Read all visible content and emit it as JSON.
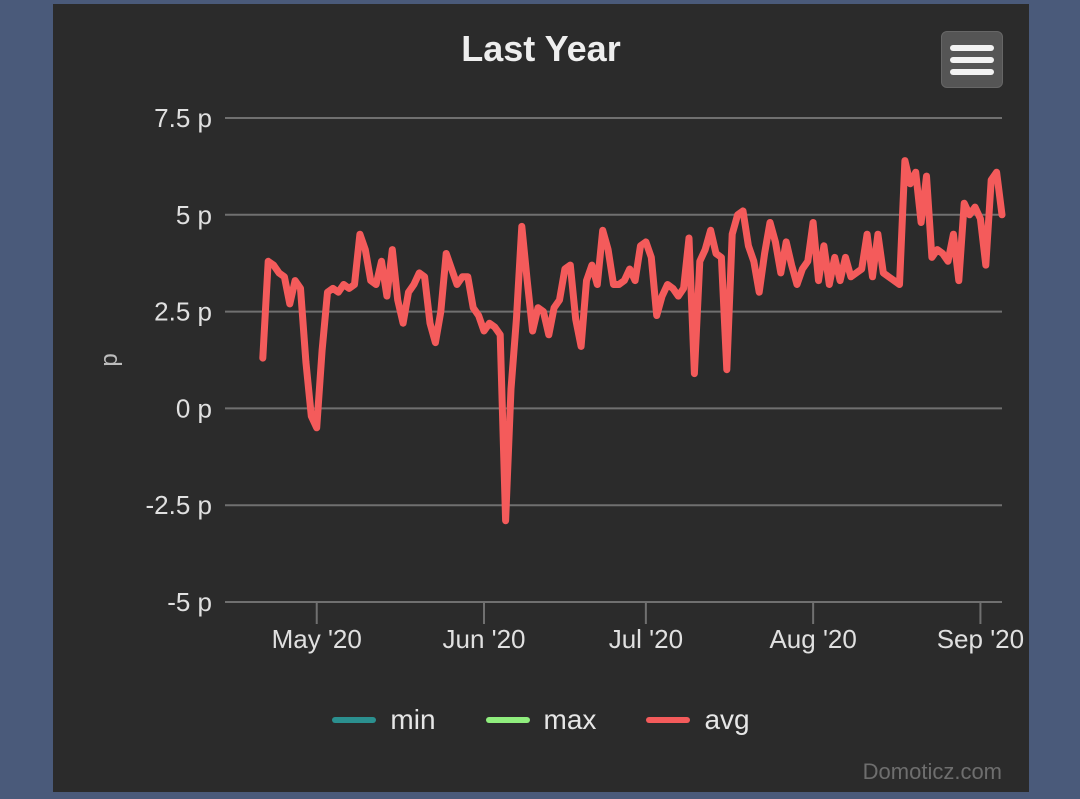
{
  "chart_data": {
    "type": "line",
    "title": "Last Year",
    "ylabel": "p",
    "ylim": [
      -5,
      7.5
    ],
    "y_ticks": [
      {
        "value": 7.5,
        "label": "7.5 p"
      },
      {
        "value": 5,
        "label": "5 p"
      },
      {
        "value": 2.5,
        "label": "2.5 p"
      },
      {
        "value": 0,
        "label": "0 p"
      },
      {
        "value": -2.5,
        "label": "-2.5 p"
      },
      {
        "value": -5,
        "label": "-5 p"
      }
    ],
    "xlim": [
      "2020-04-14",
      "2020-09-05"
    ],
    "x_ticks": [
      {
        "date": "2020-05-01",
        "label": "May '20"
      },
      {
        "date": "2020-06-01",
        "label": "Jun '20"
      },
      {
        "date": "2020-07-01",
        "label": "Jul '20"
      },
      {
        "date": "2020-08-01",
        "label": "Aug '20"
      },
      {
        "date": "2020-09-01",
        "label": "Sep '20"
      }
    ],
    "grid": true,
    "legend_position": "bottom",
    "series": [
      {
        "name": "min",
        "color": "#2b908f",
        "points": []
      },
      {
        "name": "max",
        "color": "#90ee7e",
        "points": []
      },
      {
        "name": "avg",
        "color": "#f45b5b",
        "points": [
          [
            "2020-04-21",
            1.3
          ],
          [
            "2020-04-22",
            3.8
          ],
          [
            "2020-04-23",
            3.7
          ],
          [
            "2020-04-24",
            3.5
          ],
          [
            "2020-04-25",
            3.4
          ],
          [
            "2020-04-26",
            2.7
          ],
          [
            "2020-04-27",
            3.3
          ],
          [
            "2020-04-28",
            3.1
          ],
          [
            "2020-04-29",
            1.2
          ],
          [
            "2020-04-30",
            -0.2
          ],
          [
            "2020-05-01",
            -0.5
          ],
          [
            "2020-05-02",
            1.5
          ],
          [
            "2020-05-03",
            3.0
          ],
          [
            "2020-05-04",
            3.1
          ],
          [
            "2020-05-05",
            3.0
          ],
          [
            "2020-05-06",
            3.2
          ],
          [
            "2020-05-07",
            3.1
          ],
          [
            "2020-05-08",
            3.2
          ],
          [
            "2020-05-09",
            4.5
          ],
          [
            "2020-05-10",
            4.1
          ],
          [
            "2020-05-11",
            3.3
          ],
          [
            "2020-05-12",
            3.2
          ],
          [
            "2020-05-13",
            3.8
          ],
          [
            "2020-05-14",
            2.9
          ],
          [
            "2020-05-15",
            4.1
          ],
          [
            "2020-05-16",
            2.8
          ],
          [
            "2020-05-17",
            2.2
          ],
          [
            "2020-05-18",
            3.0
          ],
          [
            "2020-05-19",
            3.2
          ],
          [
            "2020-05-20",
            3.5
          ],
          [
            "2020-05-21",
            3.4
          ],
          [
            "2020-05-22",
            2.2
          ],
          [
            "2020-05-23",
            1.7
          ],
          [
            "2020-05-24",
            2.5
          ],
          [
            "2020-05-25",
            4.0
          ],
          [
            "2020-05-26",
            3.6
          ],
          [
            "2020-05-27",
            3.2
          ],
          [
            "2020-05-28",
            3.4
          ],
          [
            "2020-05-29",
            3.4
          ],
          [
            "2020-05-30",
            2.6
          ],
          [
            "2020-05-31",
            2.4
          ],
          [
            "2020-06-01",
            2.0
          ],
          [
            "2020-06-02",
            2.2
          ],
          [
            "2020-06-03",
            2.1
          ],
          [
            "2020-06-04",
            1.9
          ],
          [
            "2020-06-05",
            -2.9
          ],
          [
            "2020-06-06",
            0.5
          ],
          [
            "2020-06-07",
            2.3
          ],
          [
            "2020-06-08",
            4.7
          ],
          [
            "2020-06-09",
            3.3
          ],
          [
            "2020-06-10",
            2.0
          ],
          [
            "2020-06-11",
            2.6
          ],
          [
            "2020-06-12",
            2.5
          ],
          [
            "2020-06-13",
            1.9
          ],
          [
            "2020-06-14",
            2.6
          ],
          [
            "2020-06-15",
            2.8
          ],
          [
            "2020-06-16",
            3.6
          ],
          [
            "2020-06-17",
            3.7
          ],
          [
            "2020-06-18",
            2.3
          ],
          [
            "2020-06-19",
            1.6
          ],
          [
            "2020-06-20",
            3.3
          ],
          [
            "2020-06-21",
            3.7
          ],
          [
            "2020-06-22",
            3.2
          ],
          [
            "2020-06-23",
            4.6
          ],
          [
            "2020-06-24",
            4.1
          ],
          [
            "2020-06-25",
            3.2
          ],
          [
            "2020-06-26",
            3.2
          ],
          [
            "2020-06-27",
            3.3
          ],
          [
            "2020-06-28",
            3.6
          ],
          [
            "2020-06-29",
            3.3
          ],
          [
            "2020-06-30",
            4.2
          ],
          [
            "2020-07-01",
            4.3
          ],
          [
            "2020-07-02",
            3.9
          ],
          [
            "2020-07-03",
            2.4
          ],
          [
            "2020-07-04",
            2.9
          ],
          [
            "2020-07-05",
            3.2
          ],
          [
            "2020-07-06",
            3.1
          ],
          [
            "2020-07-07",
            2.9
          ],
          [
            "2020-07-08",
            3.1
          ],
          [
            "2020-07-09",
            4.4
          ],
          [
            "2020-07-10",
            0.9
          ],
          [
            "2020-07-11",
            3.8
          ],
          [
            "2020-07-12",
            4.1
          ],
          [
            "2020-07-13",
            4.6
          ],
          [
            "2020-07-14",
            4.0
          ],
          [
            "2020-07-15",
            3.9
          ],
          [
            "2020-07-16",
            1.0
          ],
          [
            "2020-07-17",
            4.5
          ],
          [
            "2020-07-18",
            5.0
          ],
          [
            "2020-07-19",
            5.1
          ],
          [
            "2020-07-20",
            4.2
          ],
          [
            "2020-07-21",
            3.8
          ],
          [
            "2020-07-22",
            3.0
          ],
          [
            "2020-07-23",
            4.0
          ],
          [
            "2020-07-24",
            4.8
          ],
          [
            "2020-07-25",
            4.3
          ],
          [
            "2020-07-26",
            3.5
          ],
          [
            "2020-07-27",
            4.3
          ],
          [
            "2020-07-28",
            3.7
          ],
          [
            "2020-07-29",
            3.2
          ],
          [
            "2020-07-30",
            3.6
          ],
          [
            "2020-07-31",
            3.8
          ],
          [
            "2020-08-01",
            4.8
          ],
          [
            "2020-08-02",
            3.3
          ],
          [
            "2020-08-03",
            4.2
          ],
          [
            "2020-08-04",
            3.2
          ],
          [
            "2020-08-05",
            3.9
          ],
          [
            "2020-08-06",
            3.3
          ],
          [
            "2020-08-07",
            3.9
          ],
          [
            "2020-08-08",
            3.4
          ],
          [
            "2020-08-09",
            3.5
          ],
          [
            "2020-08-10",
            3.6
          ],
          [
            "2020-08-11",
            4.5
          ],
          [
            "2020-08-12",
            3.4
          ],
          [
            "2020-08-13",
            4.5
          ],
          [
            "2020-08-14",
            3.5
          ],
          [
            "2020-08-15",
            3.4
          ],
          [
            "2020-08-16",
            3.3
          ],
          [
            "2020-08-17",
            3.2
          ],
          [
            "2020-08-18",
            6.4
          ],
          [
            "2020-08-19",
            5.8
          ],
          [
            "2020-08-20",
            6.1
          ],
          [
            "2020-08-21",
            4.8
          ],
          [
            "2020-08-22",
            6.0
          ],
          [
            "2020-08-23",
            3.9
          ],
          [
            "2020-08-24",
            4.1
          ],
          [
            "2020-08-25",
            4.0
          ],
          [
            "2020-08-26",
            3.8
          ],
          [
            "2020-08-27",
            4.5
          ],
          [
            "2020-08-28",
            3.3
          ],
          [
            "2020-08-29",
            5.3
          ],
          [
            "2020-08-30",
            5.0
          ],
          [
            "2020-08-31",
            5.2
          ],
          [
            "2020-09-01",
            4.9
          ],
          [
            "2020-09-02",
            3.7
          ],
          [
            "2020-09-03",
            5.9
          ],
          [
            "2020-09-04",
            6.1
          ],
          [
            "2020-09-05",
            5.0
          ]
        ]
      }
    ]
  },
  "ui": {
    "menu_icon": "hamburger-menu-icon",
    "credits": "Domoticz.com"
  }
}
